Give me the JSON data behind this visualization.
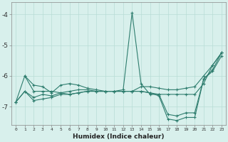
{
  "xlabel": "Humidex (Indice chaleur)",
  "x": [
    0,
    1,
    2,
    3,
    4,
    5,
    6,
    7,
    8,
    9,
    10,
    11,
    12,
    13,
    14,
    15,
    16,
    17,
    18,
    19,
    20,
    21,
    22,
    23
  ],
  "line1": [
    null,
    -6.0,
    -6.3,
    -6.35,
    -6.55,
    -6.3,
    -6.25,
    -6.3,
    -6.4,
    -6.45,
    -6.5,
    -6.5,
    -6.45,
    -3.95,
    -6.25,
    -6.6,
    -6.6,
    -6.6,
    -6.6,
    -6.6,
    -6.6,
    -6.25,
    -5.65,
    -5.25
  ],
  "line2": [
    -6.85,
    -6.0,
    -6.5,
    -6.5,
    -6.5,
    -6.55,
    -6.5,
    -6.45,
    -6.45,
    -6.5,
    -6.5,
    -6.5,
    -6.5,
    -6.5,
    -6.35,
    -6.35,
    -6.4,
    -6.45,
    -6.45,
    -6.4,
    -6.35,
    -6.0,
    -5.65,
    -5.25
  ],
  "line3": [
    -6.85,
    -6.5,
    -6.7,
    -6.6,
    -6.65,
    -6.55,
    -6.6,
    -6.55,
    -6.5,
    -6.5,
    -6.5,
    -6.5,
    -6.5,
    -6.5,
    -6.5,
    -6.55,
    -6.6,
    -7.25,
    -7.3,
    -7.2,
    -7.2,
    -6.1,
    -5.8,
    -5.25
  ],
  "line4": [
    -6.85,
    -6.5,
    -6.8,
    -6.75,
    -6.7,
    -6.6,
    -6.6,
    -6.55,
    -6.5,
    -6.5,
    -6.5,
    -6.5,
    -6.5,
    -6.5,
    -6.5,
    -6.55,
    -6.65,
    -7.4,
    -7.45,
    -7.35,
    -7.35,
    -6.1,
    -5.85,
    -5.35
  ],
  "line_color": "#2e7d6e",
  "bg_color": "#d8f0ec",
  "grid_color": "#b8ddd6",
  "ylim": [
    -7.6,
    -3.6
  ],
  "yticks": [
    -7,
    -6,
    -5,
    -4
  ]
}
